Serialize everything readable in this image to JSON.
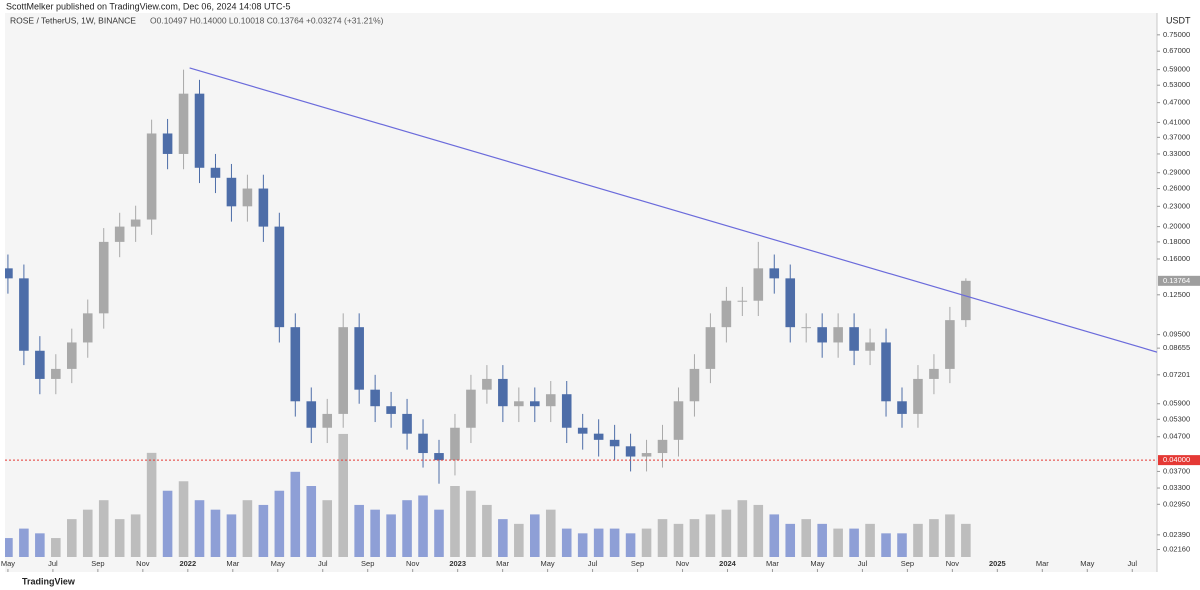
{
  "header": {
    "published": "ScottMelker published on TradingView.com, Dec 06, 2024 14:08 UTC-5",
    "brand": "TradingView"
  },
  "chart_data": {
    "type": "candlestick",
    "symbol": "ROSE / TetherUS, 1W, BINANCE",
    "ohlc_label": "O0.10497 H0.14000 L0.10018 C0.13764 +0.03274 (+31.21%)",
    "currency": "USDT",
    "log_scale": true,
    "up_color": "#a9a9a9",
    "down_color": "#4d6da8",
    "volume_up_color": "#bdbdbd",
    "volume_down_color": "#8e9fd6",
    "x": [
      0,
      0.71,
      1.42,
      2.13,
      2.84,
      3.55,
      4.26,
      4.97,
      5.68,
      6.39,
      7.1,
      7.81,
      8.52,
      9.23,
      9.94,
      10.65,
      11.36,
      12.07,
      12.78,
      13.49,
      14.2,
      14.91,
      15.62,
      16.33,
      17.04,
      17.75,
      18.46,
      19.17,
      19.88,
      20.59,
      21.3,
      22.01,
      22.72,
      23.43,
      24.14,
      24.85,
      25.56,
      26.27,
      26.98,
      27.69,
      28.4,
      29.11,
      29.82,
      30.53,
      31.24,
      31.95,
      32.66,
      33.37,
      34.08,
      34.79,
      35.5,
      36.21,
      36.92,
      37.63,
      38.34,
      39.05,
      39.76,
      40.47,
      41.18,
      41.89,
      42.6
    ],
    "open": [
      0.15,
      0.14,
      0.085,
      0.07,
      0.075,
      0.09,
      0.11,
      0.18,
      0.2,
      0.21,
      0.38,
      0.33,
      0.5,
      0.3,
      0.28,
      0.23,
      0.26,
      0.2,
      0.1,
      0.06,
      0.05,
      0.055,
      0.1,
      0.065,
      0.058,
      0.055,
      0.048,
      0.042,
      0.04,
      0.05,
      0.065,
      0.07,
      0.058,
      0.06,
      0.058,
      0.063,
      0.05,
      0.048,
      0.046,
      0.044,
      0.041,
      0.042,
      0.046,
      0.06,
      0.075,
      0.1,
      0.12,
      0.12,
      0.15,
      0.14,
      0.1,
      0.1,
      0.09,
      0.1,
      0.085,
      0.09,
      0.06,
      0.055,
      0.07,
      0.075,
      0.10497
    ],
    "high": [
      0.165,
      0.154,
      0.094,
      0.083,
      0.099,
      0.121,
      0.198,
      0.22,
      0.231,
      0.418,
      0.42,
      0.59,
      0.55,
      0.33,
      0.308,
      0.286,
      0.286,
      0.22,
      0.11,
      0.066,
      0.061,
      0.11,
      0.11,
      0.072,
      0.064,
      0.061,
      0.053,
      0.046,
      0.055,
      0.072,
      0.077,
      0.077,
      0.066,
      0.066,
      0.069,
      0.069,
      0.055,
      0.053,
      0.051,
      0.048,
      0.046,
      0.051,
      0.066,
      0.083,
      0.11,
      0.132,
      0.132,
      0.18,
      0.165,
      0.154,
      0.11,
      0.11,
      0.11,
      0.11,
      0.099,
      0.099,
      0.066,
      0.077,
      0.083,
      0.115,
      0.14
    ],
    "low": [
      0.126,
      0.077,
      0.063,
      0.063,
      0.068,
      0.081,
      0.099,
      0.162,
      0.18,
      0.189,
      0.297,
      0.297,
      0.27,
      0.252,
      0.207,
      0.207,
      0.18,
      0.09,
      0.054,
      0.045,
      0.045,
      0.05,
      0.059,
      0.052,
      0.05,
      0.043,
      0.038,
      0.034,
      0.036,
      0.045,
      0.059,
      0.052,
      0.052,
      0.052,
      0.052,
      0.045,
      0.043,
      0.041,
      0.04,
      0.037,
      0.037,
      0.038,
      0.041,
      0.054,
      0.068,
      0.09,
      0.108,
      0.108,
      0.126,
      0.09,
      0.09,
      0.081,
      0.081,
      0.077,
      0.077,
      0.054,
      0.05,
      0.05,
      0.063,
      0.068,
      0.10018
    ],
    "close": [
      0.14,
      0.085,
      0.07,
      0.075,
      0.09,
      0.11,
      0.18,
      0.2,
      0.21,
      0.38,
      0.33,
      0.5,
      0.3,
      0.28,
      0.23,
      0.26,
      0.2,
      0.1,
      0.06,
      0.05,
      0.055,
      0.1,
      0.065,
      0.058,
      0.055,
      0.048,
      0.042,
      0.04,
      0.05,
      0.065,
      0.07,
      0.058,
      0.06,
      0.058,
      0.063,
      0.05,
      0.048,
      0.046,
      0.044,
      0.041,
      0.042,
      0.046,
      0.06,
      0.075,
      0.1,
      0.12,
      0.12,
      0.15,
      0.14,
      0.1,
      0.1,
      0.09,
      0.1,
      0.085,
      0.09,
      0.06,
      0.055,
      0.07,
      0.075,
      0.10497,
      0.13764
    ],
    "volume": [
      20,
      30,
      25,
      20,
      40,
      50,
      60,
      40,
      45,
      110,
      70,
      80,
      60,
      50,
      45,
      60,
      55,
      70,
      90,
      75,
      60,
      130,
      55,
      50,
      45,
      60,
      65,
      50,
      75,
      70,
      55,
      40,
      35,
      45,
      50,
      30,
      25,
      30,
      30,
      25,
      30,
      40,
      35,
      40,
      45,
      50,
      60,
      55,
      45,
      35,
      40,
      35,
      30,
      30,
      35,
      25,
      25,
      35,
      40,
      45,
      35
    ],
    "vlim": [
      0,
      150
    ],
    "xlim": [
      -0.13,
      51.1
    ],
    "xticks": [
      {
        "value": 0,
        "label": "May"
      },
      {
        "value": 2,
        "label": "Jul"
      },
      {
        "value": 4,
        "label": "Sep"
      },
      {
        "value": 6,
        "label": "Nov"
      },
      {
        "value": 8,
        "label": "2022"
      },
      {
        "value": 10,
        "label": "Mar"
      },
      {
        "value": 12,
        "label": "May"
      },
      {
        "value": 14,
        "label": "Jul"
      },
      {
        "value": 16,
        "label": "Sep"
      },
      {
        "value": 18,
        "label": "Nov"
      },
      {
        "value": 20,
        "label": "2023"
      },
      {
        "value": 22,
        "label": "Mar"
      },
      {
        "value": 24,
        "label": "May"
      },
      {
        "value": 26,
        "label": "Jul"
      },
      {
        "value": 28,
        "label": "Sep"
      },
      {
        "value": 30,
        "label": "Nov"
      },
      {
        "value": 32,
        "label": "2024"
      },
      {
        "value": 34,
        "label": "Mar"
      },
      {
        "value": 36,
        "label": "May"
      },
      {
        "value": 38,
        "label": "Jul"
      },
      {
        "value": 40,
        "label": "Sep"
      },
      {
        "value": 42,
        "label": "Nov"
      },
      {
        "value": 44,
        "label": "2025"
      },
      {
        "value": 46,
        "label": "Mar"
      },
      {
        "value": 48,
        "label": "May"
      },
      {
        "value": 50,
        "label": "Jul"
      }
    ],
    "ylim": [
      0.0185,
      0.89
    ],
    "yticks": [
      {
        "value": 0.75,
        "label": "0.75000"
      },
      {
        "value": 0.67,
        "label": "0.67000"
      },
      {
        "value": 0.59,
        "label": "0.59000"
      },
      {
        "value": 0.53,
        "label": "0.53000"
      },
      {
        "value": 0.47,
        "label": "0.47000"
      },
      {
        "value": 0.41,
        "label": "0.41000"
      },
      {
        "value": 0.37,
        "label": "0.37000"
      },
      {
        "value": 0.33,
        "label": "0.33000"
      },
      {
        "value": 0.29,
        "label": "0.29000"
      },
      {
        "value": 0.26,
        "label": "0.26000"
      },
      {
        "value": 0.23,
        "label": "0.23000"
      },
      {
        "value": 0.2,
        "label": "0.20000"
      },
      {
        "value": 0.18,
        "label": "0.18000"
      },
      {
        "value": 0.16,
        "label": "0.16000"
      },
      {
        "value": 0.125,
        "label": "0.12500"
      },
      {
        "value": 0.095,
        "label": "0.09500"
      },
      {
        "value": 0.08655,
        "label": "0.08655"
      },
      {
        "value": 0.07201,
        "label": "0.07201"
      },
      {
        "value": 0.059,
        "label": "0.05900"
      },
      {
        "value": 0.053,
        "label": "0.05300"
      },
      {
        "value": 0.047,
        "label": "0.04700"
      },
      {
        "value": 0.037,
        "label": "0.03700"
      },
      {
        "value": 0.033,
        "label": "0.03300"
      },
      {
        "value": 0.0295,
        "label": "0.02950"
      },
      {
        "value": 0.0239,
        "label": "0.02390"
      },
      {
        "value": 0.0216,
        "label": "0.02160"
      }
    ],
    "trendline": {
      "x": [
        8.08,
        51.1
      ],
      "y": [
        0.597,
        0.0842
      ],
      "color": "#6b6bdb"
    },
    "hline": {
      "value": 0.04,
      "label": "0.04000",
      "color": "#e53935"
    },
    "last_price": {
      "value": 0.13764,
      "color": "#9e9e9e"
    }
  }
}
